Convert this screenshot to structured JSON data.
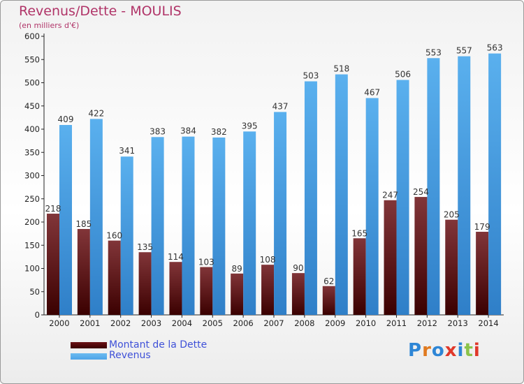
{
  "title": "Revenus/Dette - MOULIS",
  "subtitle": "(en milliers d'€)",
  "logo": "Proxiti",
  "colors": {
    "dette": "#6b1216",
    "revenus": "#4ea4e8",
    "title": "#b03468",
    "legend_text": "#3f51d8"
  },
  "chart_data": {
    "type": "bar",
    "categories": [
      "2000",
      "2001",
      "2002",
      "2003",
      "2004",
      "2005",
      "2006",
      "2007",
      "2008",
      "2009",
      "2010",
      "2011",
      "2012",
      "2013",
      "2014"
    ],
    "series": [
      {
        "name": "Montant de la Dette",
        "values": [
          218,
          185,
          160,
          135,
          114,
          103,
          89,
          108,
          90,
          62,
          165,
          247,
          254,
          205,
          179
        ]
      },
      {
        "name": "Revenus",
        "values": [
          409,
          422,
          341,
          383,
          384,
          382,
          395,
          437,
          503,
          518,
          467,
          506,
          553,
          557,
          563
        ]
      }
    ],
    "ylim": [
      0,
      600
    ],
    "yticks": [
      0,
      50,
      100,
      150,
      200,
      250,
      300,
      350,
      400,
      450,
      500,
      550,
      600
    ],
    "grid": false,
    "legend_position": "bottom-left"
  }
}
